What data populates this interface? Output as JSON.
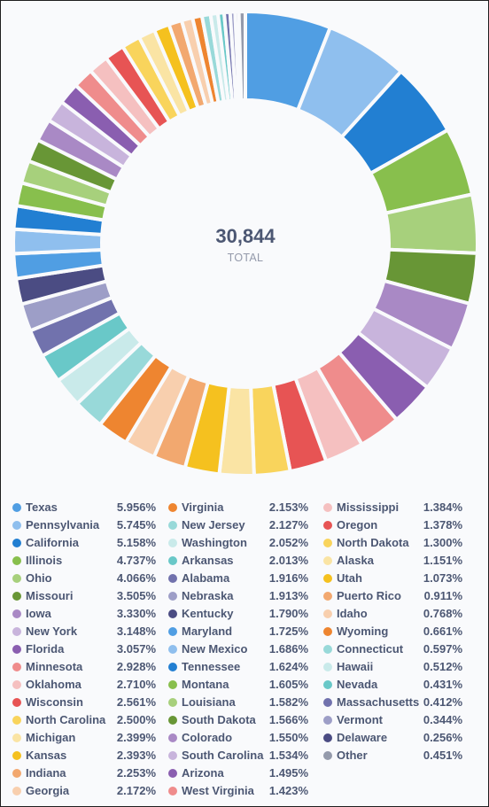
{
  "chart_data": {
    "type": "pie",
    "total_value": "30,844",
    "total_label": "TOTAL",
    "slices": [
      {
        "name": "Texas",
        "pct": "5.956%",
        "value": 5.956,
        "color": "#509ee3"
      },
      {
        "name": "Pennsylvania",
        "pct": "5.745%",
        "value": 5.745,
        "color": "#8fbfee"
      },
      {
        "name": "California",
        "pct": "5.158%",
        "value": 5.158,
        "color": "#227fd2"
      },
      {
        "name": "Illinois",
        "pct": "4.737%",
        "value": 4.737,
        "color": "#88bf4d"
      },
      {
        "name": "Ohio",
        "pct": "4.066%",
        "value": 4.066,
        "color": "#a7d07c"
      },
      {
        "name": "Missouri",
        "pct": "3.505%",
        "value": 3.505,
        "color": "#689636"
      },
      {
        "name": "Iowa",
        "pct": "3.330%",
        "value": 3.33,
        "color": "#a989c5"
      },
      {
        "name": "New York",
        "pct": "3.148%",
        "value": 3.148,
        "color": "#c8b4dc"
      },
      {
        "name": "Florida",
        "pct": "3.057%",
        "value": 3.057,
        "color": "#8a5eb0"
      },
      {
        "name": "Minnesota",
        "pct": "2.928%",
        "value": 2.928,
        "color": "#ef8c8c"
      },
      {
        "name": "Oklahoma",
        "pct": "2.710%",
        "value": 2.71,
        "color": "#f5c0c0"
      },
      {
        "name": "Wisconsin",
        "pct": "2.561%",
        "value": 2.561,
        "color": "#e75454"
      },
      {
        "name": "North Carolina",
        "pct": "2.500%",
        "value": 2.5,
        "color": "#f9d45c"
      },
      {
        "name": "Michigan",
        "pct": "2.399%",
        "value": 2.399,
        "color": "#fae4a4"
      },
      {
        "name": "Kansas",
        "pct": "2.393%",
        "value": 2.393,
        "color": "#f5c11f"
      },
      {
        "name": "Indiana",
        "pct": "2.253%",
        "value": 2.253,
        "color": "#f2a86f"
      },
      {
        "name": "Georgia",
        "pct": "2.172%",
        "value": 2.172,
        "color": "#f8cfae"
      },
      {
        "name": "Virginia",
        "pct": "2.153%",
        "value": 2.153,
        "color": "#ee8530"
      },
      {
        "name": "New Jersey",
        "pct": "2.127%",
        "value": 2.127,
        "color": "#98d9d9"
      },
      {
        "name": "Washington",
        "pct": "2.052%",
        "value": 2.052,
        "color": "#c9eaea"
      },
      {
        "name": "Arkansas",
        "pct": "2.013%",
        "value": 2.013,
        "color": "#69c8c8"
      },
      {
        "name": "Alabama",
        "pct": "1.916%",
        "value": 1.916,
        "color": "#7172ad"
      },
      {
        "name": "Nebraska",
        "pct": "1.913%",
        "value": 1.913,
        "color": "#9d9ec7"
      },
      {
        "name": "Kentucky",
        "pct": "1.790%",
        "value": 1.79,
        "color": "#4b4c83"
      },
      {
        "name": "Maryland",
        "pct": "1.725%",
        "value": 1.725,
        "color": "#509ee3"
      },
      {
        "name": "New Mexico",
        "pct": "1.686%",
        "value": 1.686,
        "color": "#8fbfee"
      },
      {
        "name": "Tennessee",
        "pct": "1.624%",
        "value": 1.624,
        "color": "#227fd2"
      },
      {
        "name": "Montana",
        "pct": "1.605%",
        "value": 1.605,
        "color": "#88bf4d"
      },
      {
        "name": "Louisiana",
        "pct": "1.582%",
        "value": 1.582,
        "color": "#a7d07c"
      },
      {
        "name": "South Dakota",
        "pct": "1.566%",
        "value": 1.566,
        "color": "#689636"
      },
      {
        "name": "Colorado",
        "pct": "1.550%",
        "value": 1.55,
        "color": "#a989c5"
      },
      {
        "name": "South Carolina",
        "pct": "1.534%",
        "value": 1.534,
        "color": "#c8b4dc"
      },
      {
        "name": "Arizona",
        "pct": "1.495%",
        "value": 1.495,
        "color": "#8a5eb0"
      },
      {
        "name": "West Virginia",
        "pct": "1.423%",
        "value": 1.423,
        "color": "#ef8c8c"
      },
      {
        "name": "Mississippi",
        "pct": "1.384%",
        "value": 1.384,
        "color": "#f5c0c0"
      },
      {
        "name": "Oregon",
        "pct": "1.378%",
        "value": 1.378,
        "color": "#e75454"
      },
      {
        "name": "North Dakota",
        "pct": "1.300%",
        "value": 1.3,
        "color": "#f9d45c"
      },
      {
        "name": "Alaska",
        "pct": "1.151%",
        "value": 1.151,
        "color": "#fae4a4"
      },
      {
        "name": "Utah",
        "pct": "1.073%",
        "value": 1.073,
        "color": "#f5c11f"
      },
      {
        "name": "Puerto Rico",
        "pct": "0.911%",
        "value": 0.911,
        "color": "#f2a86f"
      },
      {
        "name": "Idaho",
        "pct": "0.768%",
        "value": 0.768,
        "color": "#f8cfae"
      },
      {
        "name": "Wyoming",
        "pct": "0.661%",
        "value": 0.661,
        "color": "#ee8530"
      },
      {
        "name": "Connecticut",
        "pct": "0.597%",
        "value": 0.597,
        "color": "#98d9d9"
      },
      {
        "name": "Hawaii",
        "pct": "0.512%",
        "value": 0.512,
        "color": "#c9eaea"
      },
      {
        "name": "Nevada",
        "pct": "0.431%",
        "value": 0.431,
        "color": "#69c8c8"
      },
      {
        "name": "Massachusetts",
        "pct": "0.412%",
        "value": 0.412,
        "color": "#7172ad"
      },
      {
        "name": "Vermont",
        "pct": "0.344%",
        "value": 0.344,
        "color": "#9d9ec7"
      },
      {
        "name": "Delaware",
        "pct": "0.256%",
        "value": 0.256,
        "color": "#4b4c83"
      },
      {
        "name": "Other",
        "pct": "0.451%",
        "value": 0.451,
        "color": "#949aab"
      }
    ]
  }
}
